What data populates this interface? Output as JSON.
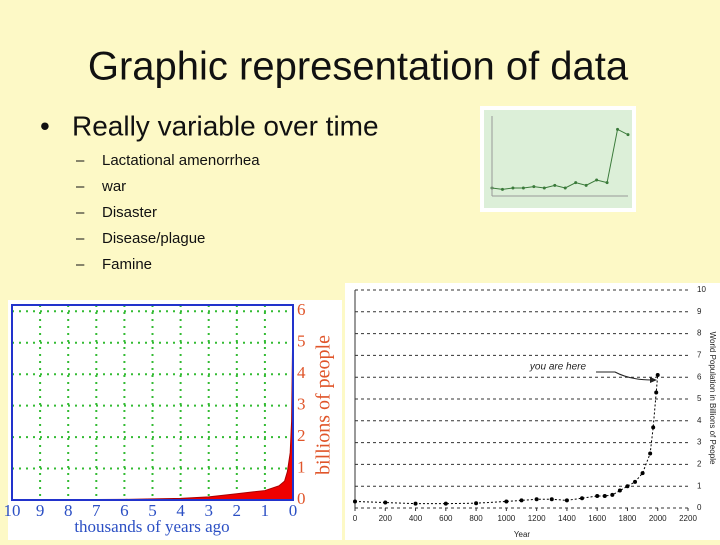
{
  "slide": {
    "title": "Graphic representation of data",
    "bullet": "Really variable over time",
    "subitems": [
      "Lactational amenorrhea",
      "war",
      "Disaster",
      "Disease/plague",
      "Famine"
    ]
  },
  "chart_data": [
    {
      "type": "line",
      "values": [
        0.3,
        0.25,
        0.3,
        0.3,
        0.35,
        0.3,
        0.4,
        0.3,
        0.5,
        0.4,
        0.6,
        0.5,
        2.5,
        2.3
      ],
      "ylim": [
        0,
        3
      ],
      "color": "#3a7a3a"
    },
    {
      "type": "area",
      "x_label": "thousands of years ago",
      "y_label": "billions of people",
      "x": [
        10,
        8,
        6,
        4,
        3,
        2,
        1,
        0.5,
        0.3,
        0.2,
        0.1,
        0.05,
        0
      ],
      "values": [
        0.005,
        0.01,
        0.02,
        0.05,
        0.1,
        0.2,
        0.3,
        0.45,
        0.6,
        0.9,
        1.5,
        2.5,
        6
      ],
      "xlim": [
        10,
        0
      ],
      "ylim": [
        0,
        6.2
      ],
      "xticks": [
        10,
        9,
        8,
        7,
        6,
        5,
        4,
        3,
        2,
        1,
        0
      ],
      "yticks": [
        0,
        1,
        2,
        3,
        4,
        5,
        6
      ],
      "color": "#ee0000",
      "grid": true
    },
    {
      "type": "line",
      "x_label": "Year",
      "y_label": "World Population in Billions of People",
      "annotation": "you are here",
      "x": [
        0,
        200,
        400,
        600,
        800,
        1000,
        1100,
        1200,
        1300,
        1400,
        1500,
        1600,
        1650,
        1700,
        1750,
        1800,
        1850,
        1900,
        1950,
        1970,
        1990,
        2000
      ],
      "values": [
        0.3,
        0.25,
        0.2,
        0.2,
        0.22,
        0.3,
        0.35,
        0.4,
        0.4,
        0.35,
        0.45,
        0.55,
        0.55,
        0.6,
        0.8,
        1.0,
        1.2,
        1.6,
        2.5,
        3.7,
        5.3,
        6.1
      ],
      "xlim": [
        0,
        2200
      ],
      "ylim": [
        0,
        10
      ],
      "xticks": [
        0,
        200,
        400,
        600,
        800,
        1000,
        1200,
        1400,
        1600,
        1800,
        2000,
        2200
      ],
      "yticks": [
        0,
        1,
        2,
        3,
        4,
        5,
        6,
        7,
        8,
        9,
        10
      ],
      "color": "#000000",
      "grid": true
    }
  ]
}
